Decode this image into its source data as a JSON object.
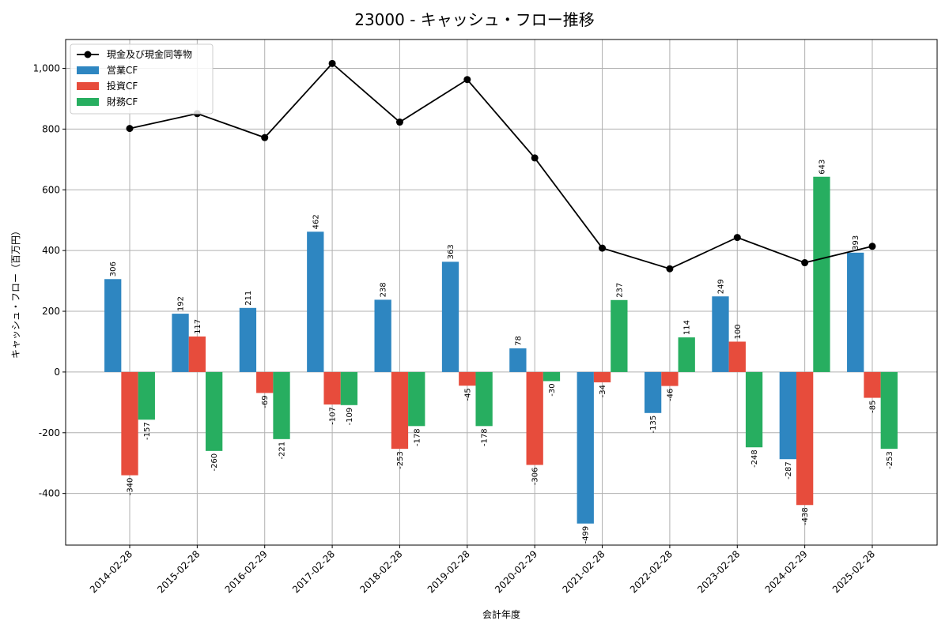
{
  "chart_data": {
    "type": "bar",
    "title": "23000 - キャッシュ・フロー推移",
    "xlabel": "会計年度",
    "ylabel": "キャッシュ・フロー（百万円）",
    "ylim": [
      -570,
      1095
    ],
    "yticks": [
      -400,
      -200,
      0,
      200,
      400,
      600,
      800,
      1000
    ],
    "ytick_labels": [
      "-400",
      "-200",
      "0",
      "200",
      "400",
      "600",
      "800",
      "1,000"
    ],
    "grid": true,
    "legend_position": "top-left",
    "categories": [
      "2014-02-28",
      "2015-02-28",
      "2016-02-29",
      "2017-02-28",
      "2018-02-28",
      "2019-02-28",
      "2020-02-29",
      "2021-02-28",
      "2022-02-28",
      "2023-02-28",
      "2024-02-29",
      "2025-02-28"
    ],
    "series": [
      {
        "name": "営業CF",
        "kind": "bar",
        "color": "#2e86c1",
        "values": [
          306,
          192,
          211,
          462,
          238,
          363,
          78,
          -499,
          -135,
          249,
          -287,
          393
        ]
      },
      {
        "name": "投資CF",
        "kind": "bar",
        "color": "#e74c3c",
        "values": [
          -340,
          117,
          -69,
          -107,
          -253,
          -45,
          -306,
          -34,
          -46,
          100,
          -438,
          -85
        ]
      },
      {
        "name": "財務CF",
        "kind": "bar",
        "color": "#27ae60",
        "values": [
          -157,
          -260,
          -221,
          -109,
          -178,
          -178,
          -30,
          237,
          114,
          -248,
          643,
          -253
        ]
      },
      {
        "name": "現金及び現金同等物",
        "kind": "line",
        "color": "#000000",
        "values": [
          802,
          851,
          772,
          1016,
          823,
          963,
          705,
          408,
          340,
          443,
          360,
          414
        ]
      }
    ]
  }
}
